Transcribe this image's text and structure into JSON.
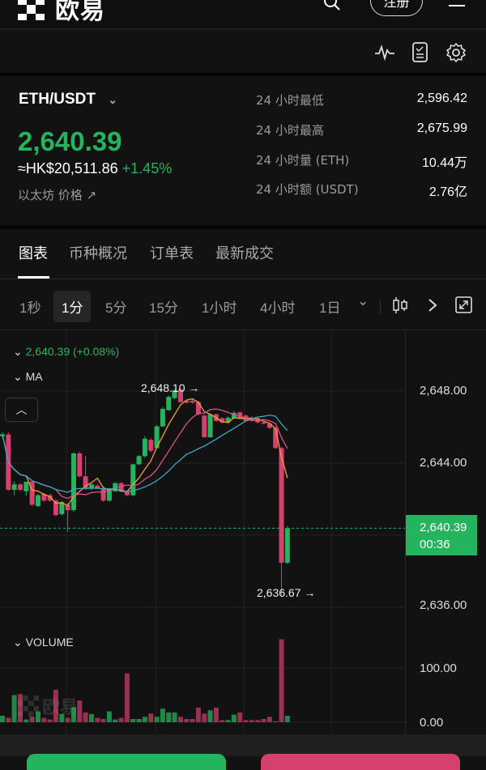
{
  "header": {
    "logo_text": "欧易",
    "register_label": "注册"
  },
  "toolbar": {
    "icons": [
      "pulse-icon",
      "document-check-icon",
      "gear-icon"
    ]
  },
  "ticker": {
    "pair": "ETH/USDT",
    "last_price": "2,640.39",
    "fiat_price": "≈HK$20,511.86",
    "change_pct": "+1.45%",
    "link_label": "以太坊 价格",
    "stats": [
      {
        "label": "24 小时最低",
        "value": "2,596.42"
      },
      {
        "label": "24 小时最高",
        "value": "2,675.99"
      },
      {
        "label": "24 小时量 (ETH)",
        "value": "10.44万"
      },
      {
        "label": "24 小时额 (USDT)",
        "value": "2.76亿"
      }
    ]
  },
  "tabs": [
    {
      "label": "图表",
      "selected": true
    },
    {
      "label": "币种概况"
    },
    {
      "label": "订单表"
    },
    {
      "label": "最新成交"
    }
  ],
  "intervals": [
    {
      "label": "1秒"
    },
    {
      "label": "1分",
      "selected": true
    },
    {
      "label": "5分"
    },
    {
      "label": "15分"
    },
    {
      "label": "1小时"
    },
    {
      "label": "4小时"
    },
    {
      "label": "1日"
    }
  ],
  "chart": {
    "legend_price": "2,640.39 (+0.08%)",
    "ma_label": "MA",
    "high_annotation": "2,648.10",
    "low_annotation": "2,636.67",
    "current_price_tag": "2,640.39",
    "countdown": "00:36",
    "volume_label": "VOLUME",
    "watermark": "欧易"
  },
  "chart_data": {
    "type": "candlestick",
    "interval": "1分",
    "y_ticks": [
      "2,648.00",
      "2,644.00",
      "2,636.00"
    ],
    "ylim": [
      2635.7,
      2649.4
    ],
    "volume_ticks": [
      "100.00",
      "0.00"
    ],
    "colors": {
      "up": "#25b45e",
      "down": "#d6406e",
      "ma_short": "#f0a030",
      "ma_mid": "#e0508a",
      "ma_long": "#3aa8c8"
    },
    "ma_periods": [
      5,
      10,
      20
    ],
    "candles": [
      [
        2645.5,
        2645.7,
        2645.4,
        2645.6
      ],
      [
        2645.59,
        2645.7,
        2642.45,
        2642.52
      ],
      [
        2642.52,
        2642.97,
        2642.22,
        2642.82
      ],
      [
        2642.82,
        2642.9,
        2642.45,
        2642.52
      ],
      [
        2642.44,
        2642.97,
        2642.2,
        2642.97
      ],
      [
        2642.97,
        2643.0,
        2641.6,
        2641.69
      ],
      [
        2641.62,
        2642.3,
        2641.55,
        2642.22
      ],
      [
        2642.29,
        2642.35,
        2641.85,
        2641.92
      ],
      [
        2642.22,
        2642.3,
        2641.85,
        2641.92
      ],
      [
        2641.92,
        2642.0,
        2641.05,
        2641.12
      ],
      [
        2641.17,
        2641.9,
        2641.1,
        2641.84
      ],
      [
        2641.69,
        2641.8,
        2640.19,
        2641.39
      ],
      [
        2641.39,
        2644.6,
        2641.3,
        2644.54
      ],
      [
        2644.54,
        2644.65,
        2643.2,
        2643.27
      ],
      [
        2643.27,
        2644.4,
        2642.5,
        2642.59
      ],
      [
        2642.59,
        2642.9,
        2642.5,
        2642.82
      ],
      [
        2642.75,
        2642.85,
        2642.55,
        2642.59
      ],
      [
        2642.59,
        2642.7,
        2641.85,
        2641.92
      ],
      [
        2641.92,
        2642.6,
        2641.85,
        2642.59
      ],
      [
        2642.44,
        2642.95,
        2642.4,
        2642.89
      ],
      [
        2642.89,
        2642.95,
        2642.4,
        2642.44
      ],
      [
        2642.44,
        2642.5,
        2642.15,
        2642.22
      ],
      [
        2642.22,
        2643.95,
        2642.15,
        2643.94
      ],
      [
        2643.94,
        2644.45,
        2643.9,
        2644.39
      ],
      [
        2644.39,
        2645.5,
        2644.3,
        2645.36
      ],
      [
        2645.29,
        2645.4,
        2644.6,
        2644.69
      ],
      [
        2644.84,
        2646.1,
        2644.8,
        2646.04
      ],
      [
        2646.04,
        2647.1,
        2646.0,
        2647.01
      ],
      [
        2646.94,
        2647.75,
        2646.9,
        2647.68
      ],
      [
        2647.61,
        2648.08,
        2647.55,
        2648.06
      ],
      [
        2648.1,
        2648.1,
        2647.35,
        2647.39
      ],
      [
        2647.46,
        2647.5,
        2647.3,
        2647.36
      ],
      [
        2647.46,
        2647.6,
        2647.3,
        2647.36
      ],
      [
        2647.39,
        2647.45,
        2646.65,
        2646.71
      ],
      [
        2646.64,
        2646.7,
        2645.4,
        2645.44
      ],
      [
        2645.44,
        2646.75,
        2645.4,
        2646.71
      ],
      [
        2646.71,
        2646.75,
        2646.3,
        2646.34
      ],
      [
        2646.49,
        2646.55,
        2646.2,
        2646.26
      ],
      [
        2646.26,
        2646.6,
        2646.2,
        2646.52
      ],
      [
        2646.49,
        2646.9,
        2646.45,
        2646.79
      ],
      [
        2646.82,
        2646.85,
        2646.45,
        2646.49
      ],
      [
        2646.64,
        2646.7,
        2646.3,
        2646.34
      ],
      [
        2646.52,
        2646.6,
        2646.3,
        2646.34
      ],
      [
        2646.49,
        2646.55,
        2646.2,
        2646.26
      ],
      [
        2646.26,
        2646.3,
        2646.15,
        2646.19
      ],
      [
        2646.19,
        2646.25,
        2645.9,
        2645.96
      ],
      [
        2645.96,
        2646.0,
        2644.8,
        2644.84
      ],
      [
        2644.84,
        2644.9,
        2636.67,
        2638.47
      ],
      [
        2638.47,
        2640.5,
        2638.4,
        2640.39
      ]
    ],
    "volumes": [
      12,
      8,
      50,
      52,
      5,
      10,
      20,
      8,
      5,
      60,
      15,
      8,
      28,
      40,
      18,
      15,
      8,
      6,
      20,
      5,
      8,
      90,
      6,
      6,
      10,
      16,
      10,
      25,
      18,
      18,
      10,
      6,
      6,
      27,
      16,
      22,
      27,
      4,
      4,
      14,
      18,
      4,
      4,
      4,
      6,
      10,
      2,
      153,
      12
    ]
  },
  "bottom": {
    "buy_color": "#25b45e",
    "sell_color": "#d6406e"
  }
}
